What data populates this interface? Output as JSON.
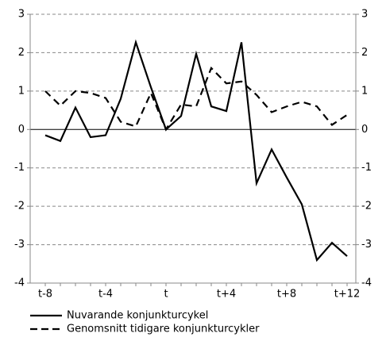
{
  "chart_data": {
    "type": "line",
    "categories": [
      "t-8",
      null,
      null,
      null,
      "t-4",
      null,
      null,
      null,
      "t",
      null,
      null,
      null,
      "t+4",
      null,
      null,
      null,
      "t+8",
      null,
      null,
      null,
      "t+12"
    ],
    "series": [
      {
        "name": "Nuvarande konjunkturcykel",
        "color": "#000000",
        "dash": "solid",
        "values": [
          -0.15,
          -0.3,
          0.57,
          -0.2,
          -0.15,
          0.8,
          2.27,
          1.1,
          0,
          0.35,
          1.97,
          0.6,
          0.48,
          2.27,
          -1.4,
          -0.52,
          -1.25,
          -1.95,
          -3.4,
          -2.95,
          -3.3
        ]
      },
      {
        "name": "Genomsnitt tidigare konjunkturcykler",
        "color": "#000000",
        "dash": "dashed",
        "values": [
          1.0,
          0.62,
          1.0,
          0.95,
          0.82,
          0.2,
          0.08,
          0.95,
          0,
          0.65,
          0.6,
          1.6,
          1.2,
          1.25,
          0.9,
          0.45,
          0.6,
          0.72,
          0.6,
          0.12,
          0.38
        ]
      }
    ],
    "ylim": [
      -4,
      3
    ],
    "yticks": [
      3,
      2,
      1,
      0,
      -1,
      -2,
      -3,
      -4
    ],
    "grid": true
  }
}
